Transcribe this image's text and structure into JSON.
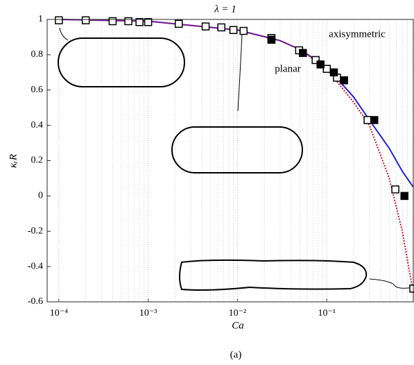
{
  "chart_data": {
    "type": "line",
    "title": "λ = 1",
    "x_label": "Ca",
    "y_label": "κᵣR",
    "caption": "(a)",
    "x_log": true,
    "minor_grid": true,
    "xlim": [
      7.4e-05,
      0.93
    ],
    "ylim": [
      -0.6,
      1
    ],
    "xticks": [
      {
        "value": 0.0001,
        "label": "10⁻⁴"
      },
      {
        "value": 0.001,
        "label": "10⁻³"
      },
      {
        "value": 0.01,
        "label": "10⁻²"
      },
      {
        "value": 0.1,
        "label": "10⁻¹"
      }
    ],
    "yticks": [
      -0.6,
      -0.4,
      -0.2,
      0,
      0.2,
      0.4,
      0.6,
      0.8,
      1
    ],
    "series": [
      {
        "name": "axisymmetric",
        "color": "#1f1fe6",
        "style": "solid",
        "x": [
          0.0001,
          0.001,
          0.01,
          0.03,
          0.05,
          0.1,
          0.2,
          0.3,
          0.5,
          0.7,
          0.93
        ],
        "values": [
          1.0,
          0.99,
          0.94,
          0.88,
          0.83,
          0.73,
          0.56,
          0.43,
          0.27,
          0.14,
          0.05
        ]
      },
      {
        "name": "planar",
        "color": "#c8102e",
        "style": "dotted",
        "x": [
          0.0001,
          0.001,
          0.01,
          0.03,
          0.05,
          0.1,
          0.2,
          0.3,
          0.5,
          0.7,
          0.93
        ],
        "values": [
          1.0,
          0.99,
          0.94,
          0.88,
          0.83,
          0.72,
          0.53,
          0.4,
          0.1,
          -0.2,
          -0.55
        ]
      },
      {
        "marker": "open",
        "color": "#000000",
        "x": [
          0.0001,
          0.0002,
          0.0004,
          0.0006,
          0.0008,
          0.001,
          0.0022,
          0.0044,
          0.0066,
          0.009,
          0.0117,
          0.024,
          0.049,
          0.075,
          0.1,
          0.13,
          0.286,
          0.585,
          0.93
        ],
        "values": [
          0.995,
          0.995,
          0.99,
          0.99,
          0.985,
          0.985,
          0.975,
          0.96,
          0.955,
          0.94,
          0.935,
          0.895,
          0.825,
          0.77,
          0.72,
          0.67,
          0.43,
          0.037,
          -0.525
        ]
      },
      {
        "marker": "filled",
        "color": "#000000",
        "x": [
          0.024,
          0.054,
          0.085,
          0.12,
          0.156,
          0.34,
          0.74
        ],
        "values": [
          0.885,
          0.81,
          0.745,
          0.7,
          0.655,
          0.43,
          0.0
        ]
      }
    ]
  }
}
